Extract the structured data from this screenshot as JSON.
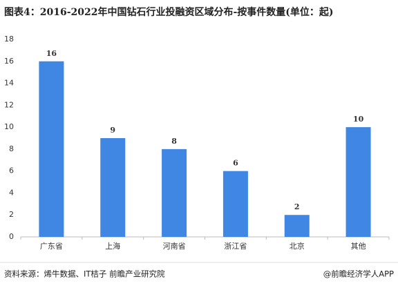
{
  "chart_data": {
    "type": "bar",
    "title": "图表4：2016-2022年中国钻石行业投融资区域分布-按事件数量(单位：起)",
    "categories": [
      "广东省",
      "上海",
      "河南省",
      "浙江省",
      "北京",
      "其他"
    ],
    "values": [
      16,
      9,
      8,
      6,
      2,
      10
    ],
    "color": "#3f87e3",
    "ylim": [
      0,
      18
    ],
    "yticks": [
      0,
      2,
      4,
      6,
      8,
      10,
      12,
      14,
      16,
      18
    ],
    "grid": false
  },
  "footer": {
    "source": "资料来源：烯牛数据、IT桔子 前瞻产业研究院",
    "brand": "@前瞻经济学人APP"
  }
}
